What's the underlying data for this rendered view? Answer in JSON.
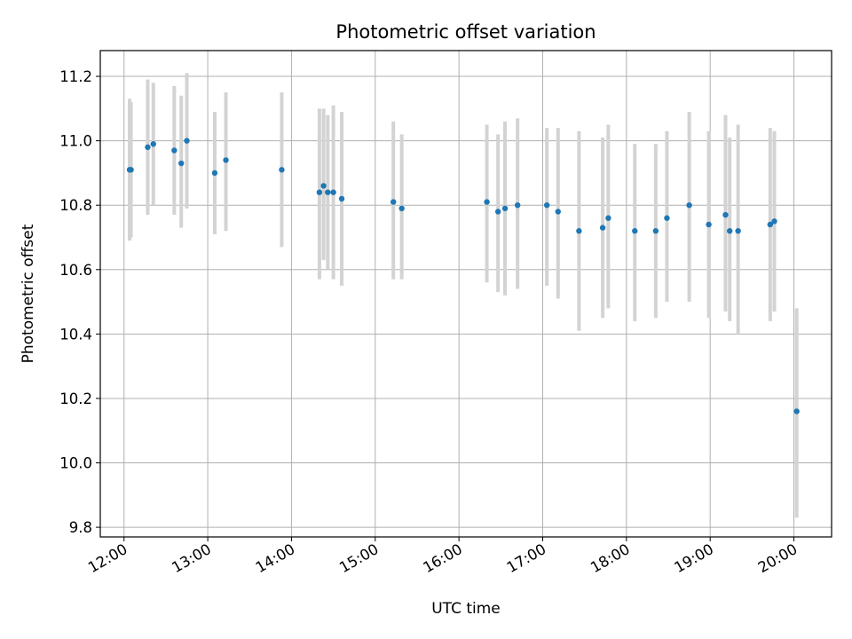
{
  "chart_data": {
    "type": "scatter",
    "title": "Photometric offset variation",
    "xlabel": "UTC time",
    "ylabel": "Photometric offset",
    "x_ticks": [
      "12:00",
      "13:00",
      "14:00",
      "15:00",
      "16:00",
      "17:00",
      "18:00",
      "19:00",
      "20:00"
    ],
    "y_ticks": [
      "9.8",
      "10.0",
      "10.2",
      "10.4",
      "10.6",
      "10.8",
      "11.0",
      "11.2"
    ],
    "xlim": [
      "11:43",
      "20:27"
    ],
    "ylim": [
      9.77,
      11.28
    ],
    "grid": true,
    "marker_color": "#1f77b4",
    "errorbar_color": "#d3d3d3",
    "points": [
      {
        "x": "12:04",
        "y": 10.91,
        "lo": 10.69,
        "hi": 11.13
      },
      {
        "x": "12:05",
        "y": 10.91,
        "lo": 10.7,
        "hi": 11.12
      },
      {
        "x": "12:17",
        "y": 10.98,
        "lo": 10.77,
        "hi": 11.19
      },
      {
        "x": "12:21",
        "y": 10.99,
        "lo": 10.8,
        "hi": 11.18
      },
      {
        "x": "12:36",
        "y": 10.97,
        "lo": 10.77,
        "hi": 11.17
      },
      {
        "x": "12:41",
        "y": 10.93,
        "lo": 10.73,
        "hi": 11.14
      },
      {
        "x": "12:45",
        "y": 11.0,
        "lo": 10.79,
        "hi": 11.21
      },
      {
        "x": "13:05",
        "y": 10.9,
        "lo": 10.71,
        "hi": 11.09
      },
      {
        "x": "13:13",
        "y": 10.94,
        "lo": 10.72,
        "hi": 11.15
      },
      {
        "x": "13:53",
        "y": 10.91,
        "lo": 10.67,
        "hi": 11.15
      },
      {
        "x": "14:20",
        "y": 10.84,
        "lo": 10.57,
        "hi": 11.1
      },
      {
        "x": "14:23",
        "y": 10.86,
        "lo": 10.63,
        "hi": 11.1
      },
      {
        "x": "14:26",
        "y": 10.84,
        "lo": 10.6,
        "hi": 11.08
      },
      {
        "x": "14:30",
        "y": 10.84,
        "lo": 10.57,
        "hi": 11.11
      },
      {
        "x": "14:36",
        "y": 10.82,
        "lo": 10.55,
        "hi": 11.09
      },
      {
        "x": "15:13",
        "y": 10.81,
        "lo": 10.57,
        "hi": 11.06
      },
      {
        "x": "15:19",
        "y": 10.79,
        "lo": 10.57,
        "hi": 11.02
      },
      {
        "x": "16:20",
        "y": 10.81,
        "lo": 10.56,
        "hi": 11.05
      },
      {
        "x": "16:28",
        "y": 10.78,
        "lo": 10.53,
        "hi": 11.02
      },
      {
        "x": "16:33",
        "y": 10.79,
        "lo": 10.52,
        "hi": 11.06
      },
      {
        "x": "16:42",
        "y": 10.8,
        "lo": 10.54,
        "hi": 11.07
      },
      {
        "x": "17:03",
        "y": 10.8,
        "lo": 10.55,
        "hi": 11.04
      },
      {
        "x": "17:11",
        "y": 10.78,
        "lo": 10.51,
        "hi": 11.04
      },
      {
        "x": "17:26",
        "y": 10.72,
        "lo": 10.41,
        "hi": 11.03
      },
      {
        "x": "17:43",
        "y": 10.73,
        "lo": 10.45,
        "hi": 11.01
      },
      {
        "x": "17:47",
        "y": 10.76,
        "lo": 10.48,
        "hi": 11.05
      },
      {
        "x": "18:06",
        "y": 10.72,
        "lo": 10.44,
        "hi": 10.99
      },
      {
        "x": "18:21",
        "y": 10.72,
        "lo": 10.45,
        "hi": 10.99
      },
      {
        "x": "18:29",
        "y": 10.76,
        "lo": 10.5,
        "hi": 11.03
      },
      {
        "x": "18:45",
        "y": 10.8,
        "lo": 10.5,
        "hi": 11.09
      },
      {
        "x": "18:59",
        "y": 10.74,
        "lo": 10.45,
        "hi": 11.03
      },
      {
        "x": "19:11",
        "y": 10.77,
        "lo": 10.47,
        "hi": 11.08
      },
      {
        "x": "19:14",
        "y": 10.72,
        "lo": 10.44,
        "hi": 11.01
      },
      {
        "x": "19:20",
        "y": 10.72,
        "lo": 10.4,
        "hi": 11.05
      },
      {
        "x": "19:43",
        "y": 10.74,
        "lo": 10.44,
        "hi": 11.04
      },
      {
        "x": "19:46",
        "y": 10.75,
        "lo": 10.47,
        "hi": 11.03
      },
      {
        "x": "20:02",
        "y": 10.16,
        "lo": 9.83,
        "hi": 10.48
      }
    ]
  }
}
